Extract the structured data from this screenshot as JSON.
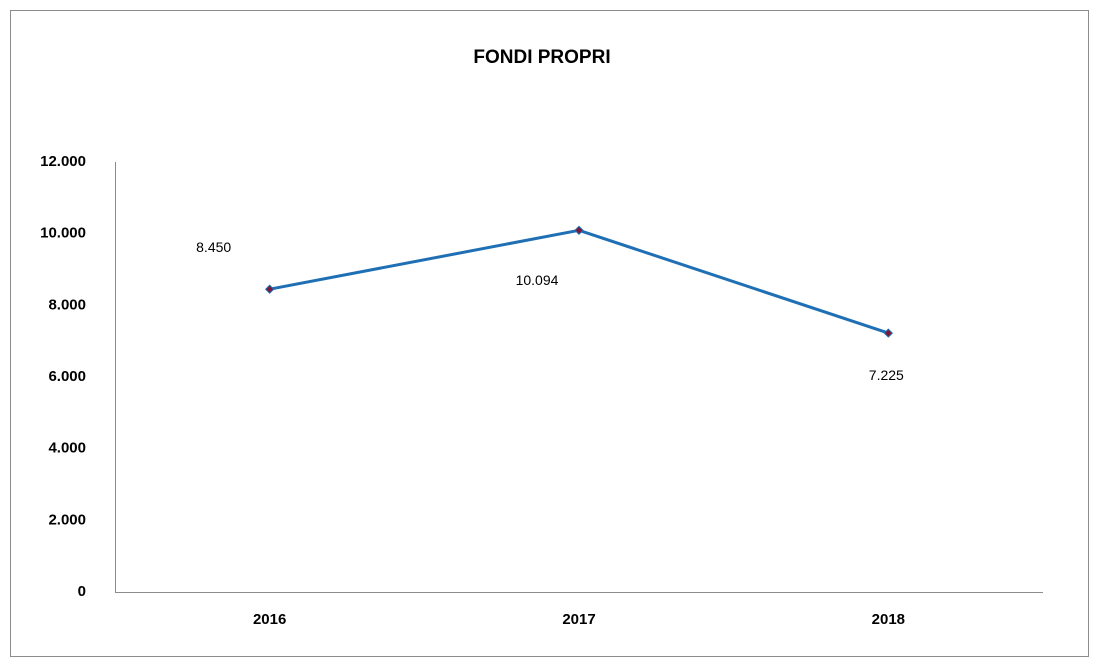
{
  "chart_data": {
    "type": "line",
    "title": "FONDI PROPRI",
    "categories": [
      "2016",
      "2017",
      "2018"
    ],
    "values": [
      8450,
      10094,
      7225
    ],
    "value_labels": [
      "8.450",
      "10.094",
      "7.225"
    ],
    "color": "#1f6fb4",
    "marker_color": "#7a1a3a",
    "ylim": [
      0,
      12000
    ],
    "yticks": [
      0,
      {
        "value": 2000,
        "label": "2.000"
      },
      {
        "value": 4000,
        "label": "4.000"
      },
      {
        "value": 6000,
        "label": "6.000"
      },
      {
        "value": 8000,
        "label": "8.000"
      },
      {
        "value": 10000,
        "label": "10.000"
      },
      {
        "value": 12000,
        "label": "12.000"
      }
    ],
    "grid": false
  }
}
